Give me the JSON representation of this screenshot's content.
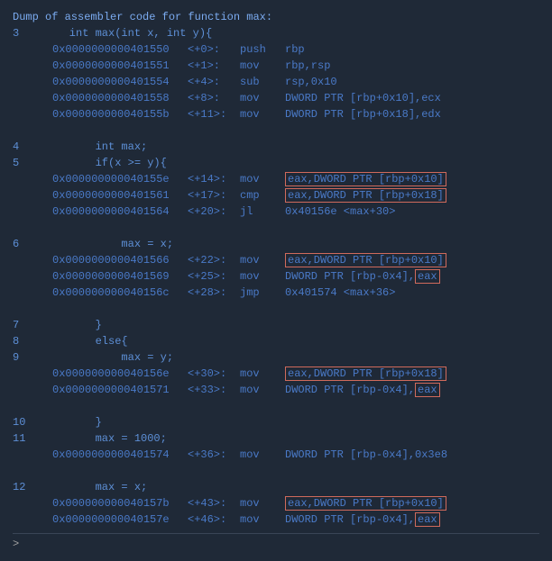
{
  "header": "Dump of assembler code for function max:",
  "bg_color": "#1f2937",
  "text_color": "#5d8fd6",
  "dim_color": "#4a7ac8",
  "highlight_border": "#d06a5c",
  "font_family": "Consolas, monospace",
  "font_size_pt": 9,
  "lines": [
    {
      "t": "src",
      "n": "3",
      "code": "    int max(int x, int y){"
    },
    {
      "t": "asm",
      "addr": "0x0000000000401550",
      "off": "<+0>:",
      "mn": "push",
      "op": "rbp"
    },
    {
      "t": "asm",
      "addr": "0x0000000000401551",
      "off": "<+1>:",
      "mn": "mov",
      "op": "rbp,rsp"
    },
    {
      "t": "asm",
      "addr": "0x0000000000401554",
      "off": "<+4>:",
      "mn": "sub",
      "op": "rsp,0x10"
    },
    {
      "t": "asm",
      "addr": "0x0000000000401558",
      "off": "<+8>:",
      "mn": "mov",
      "op": "DWORD PTR [rbp+0x10],ecx"
    },
    {
      "t": "asm",
      "addr": "0x000000000040155b",
      "off": "<+11>:",
      "mn": "mov",
      "op": "DWORD PTR [rbp+0x18],edx"
    },
    {
      "t": "blank"
    },
    {
      "t": "src",
      "n": "4",
      "code": "        int max;"
    },
    {
      "t": "src",
      "n": "5",
      "code": "        if(x >= y){"
    },
    {
      "t": "asm",
      "addr": "0x000000000040155e",
      "off": "<+14>:",
      "mn": "mov",
      "op_pre": "",
      "op_hl": "eax,DWORD PTR [rbp+0x10]",
      "op_post": ""
    },
    {
      "t": "asm",
      "addr": "0x0000000000401561",
      "off": "<+17>:",
      "mn": "cmp",
      "op_pre": "",
      "op_hl": "eax,DWORD PTR [rbp+0x18]",
      "op_post": ""
    },
    {
      "t": "asm",
      "addr": "0x0000000000401564",
      "off": "<+20>:",
      "mn": "jl",
      "op": "0x40156e <max+30>"
    },
    {
      "t": "blank"
    },
    {
      "t": "src",
      "n": "6",
      "code": "            max = x;"
    },
    {
      "t": "asm",
      "addr": "0x0000000000401566",
      "off": "<+22>:",
      "mn": "mov",
      "op_pre": "",
      "op_hl": "eax,DWORD PTR [rbp+0x10]",
      "op_post": ""
    },
    {
      "t": "asm",
      "addr": "0x0000000000401569",
      "off": "<+25>:",
      "mn": "mov",
      "op_pre": "DWORD PTR [rbp-0x4],",
      "op_hl": "eax",
      "op_post": ""
    },
    {
      "t": "asm",
      "addr": "0x000000000040156c",
      "off": "<+28>:",
      "mn": "jmp",
      "op": "0x401574 <max+36>"
    },
    {
      "t": "blank"
    },
    {
      "t": "src",
      "n": "7",
      "code": "        }"
    },
    {
      "t": "src",
      "n": "8",
      "code": "        else{"
    },
    {
      "t": "src",
      "n": "9",
      "code": "            max = y;"
    },
    {
      "t": "asm",
      "addr": "0x000000000040156e",
      "off": "<+30>:",
      "mn": "mov",
      "op_pre": "",
      "op_hl": "eax,DWORD PTR [rbp+0x18]",
      "op_post": ""
    },
    {
      "t": "asm",
      "addr": "0x0000000000401571",
      "off": "<+33>:",
      "mn": "mov",
      "op_pre": "DWORD PTR [rbp-0x4],",
      "op_hl": "eax",
      "op_post": ""
    },
    {
      "t": "blank"
    },
    {
      "t": "src",
      "n": "10",
      "code": "        }"
    },
    {
      "t": "src",
      "n": "11",
      "code": "        max = 1000;"
    },
    {
      "t": "asm",
      "addr": "0x0000000000401574",
      "off": "<+36>:",
      "mn": "mov",
      "op": "DWORD PTR [rbp-0x4],0x3e8"
    },
    {
      "t": "blank"
    },
    {
      "t": "src",
      "n": "12",
      "code": "        max = x;"
    },
    {
      "t": "asm",
      "addr": "0x000000000040157b",
      "off": "<+43>:",
      "mn": "mov",
      "op_pre": "",
      "op_hl": "eax,DWORD PTR [rbp+0x10]",
      "op_post": ""
    },
    {
      "t": "asm",
      "addr": "0x000000000040157e",
      "off": "<+46>:",
      "mn": "mov",
      "op_pre": "DWORD PTR [rbp-0x4],",
      "op_hl": "eax",
      "op_post": ""
    }
  ],
  "prompt": ">"
}
